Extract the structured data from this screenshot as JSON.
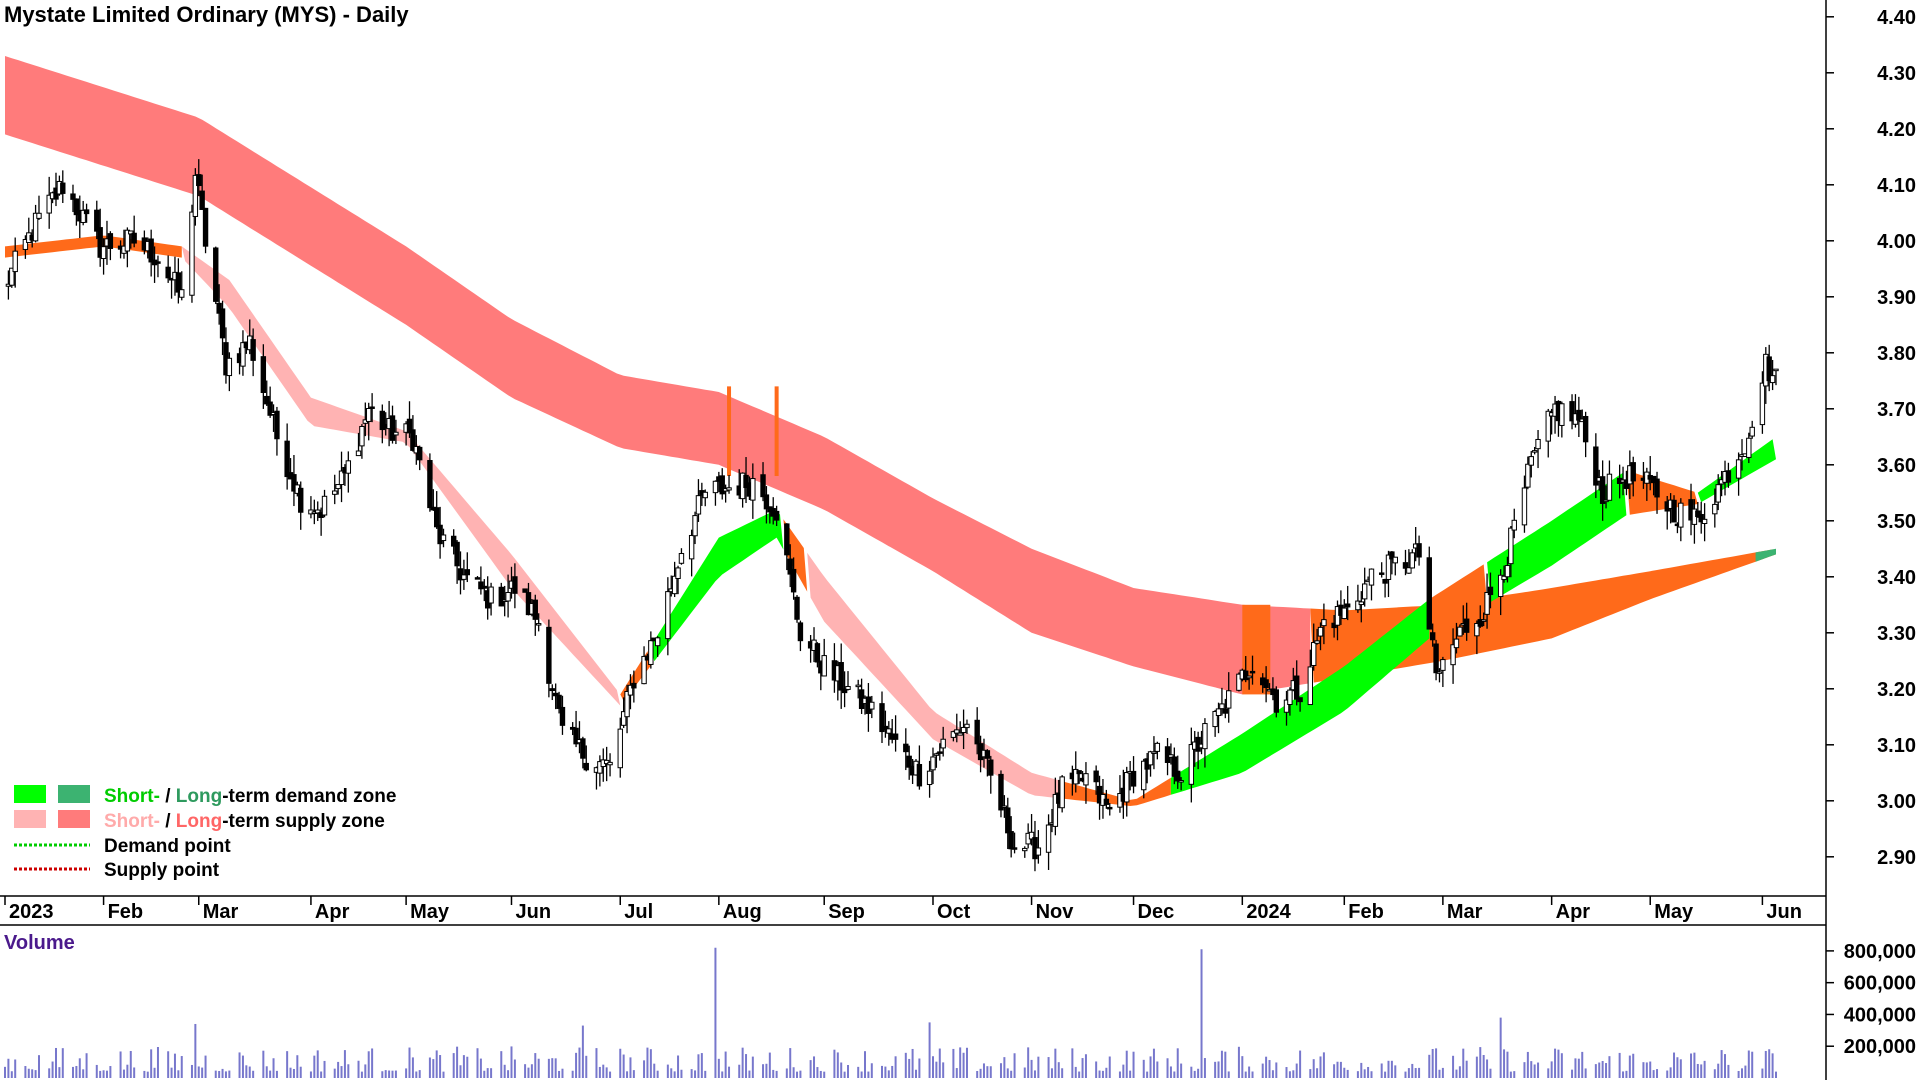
{
  "title": "Mystate Limited Ordinary (MYS) - Daily",
  "colors": {
    "short_demand": "#00ff00",
    "long_demand": "#3cb371",
    "short_supply": "#ffb3b3",
    "long_supply": "#ff7b7b",
    "overlap": "#ff6a1a",
    "volume": "#7777cc",
    "candle": "#000000",
    "volume_label": "#4b1a8c"
  },
  "legend": {
    "demand_short": "Short-",
    "demand_sep": " / ",
    "demand_long": "Long",
    "demand_rest": "-term demand zone",
    "supply_short": "Short-",
    "supply_sep": " / ",
    "supply_long": "Long",
    "supply_rest": "-term supply zone",
    "demand_point": "Demand point",
    "supply_point": "Supply point"
  },
  "chart_data": [
    {
      "type": "candlestick",
      "title": "Mystate Limited Ordinary (MYS) - Daily",
      "y_axis": {
        "position": "right",
        "range": [
          2.83,
          4.43
        ],
        "ticks": [
          "4.40",
          "4.30",
          "4.20",
          "4.10",
          "4.00",
          "3.90",
          "3.80",
          "3.70",
          "3.60",
          "3.50",
          "3.40",
          "3.30",
          "3.20",
          "3.10",
          "3.00",
          "2.90"
        ]
      },
      "x_axis": {
        "tick_labels": [
          "2023",
          "Feb",
          "Mar",
          "Apr",
          "May",
          "Jun",
          "Jul",
          "Aug",
          "Sep",
          "Oct",
          "Nov",
          "Dec",
          "2024",
          "Feb",
          "Mar",
          "Apr",
          "May",
          "Jun"
        ],
        "tick_dates": [
          "2023-01-03",
          "2023-02-01",
          "2023-03-01",
          "2023-04-03",
          "2023-05-01",
          "2023-06-01",
          "2023-07-03",
          "2023-08-01",
          "2023-09-01",
          "2023-10-03",
          "2023-11-01",
          "2023-12-01",
          "2024-01-02",
          "2024-02-01",
          "2024-03-01",
          "2024-04-02",
          "2024-05-01",
          "2024-06-03"
        ]
      },
      "price_path": [
        {
          "date": "2023-01-03",
          "close": 3.92
        },
        {
          "date": "2023-01-12",
          "close": 4.03
        },
        {
          "date": "2023-01-20",
          "close": 4.1
        },
        {
          "date": "2023-01-31",
          "close": 3.99
        },
        {
          "date": "2023-02-10",
          "close": 4.0
        },
        {
          "date": "2023-02-17",
          "close": 3.97
        },
        {
          "date": "2023-02-24",
          "close": 3.9
        },
        {
          "date": "2023-02-28",
          "close": 4.12
        },
        {
          "date": "2023-03-03",
          "close": 4.0
        },
        {
          "date": "2023-03-09",
          "close": 3.78
        },
        {
          "date": "2023-03-16",
          "close": 3.82
        },
        {
          "date": "2023-03-24",
          "close": 3.65
        },
        {
          "date": "2023-03-31",
          "close": 3.54
        },
        {
          "date": "2023-04-06",
          "close": 3.52
        },
        {
          "date": "2023-04-13",
          "close": 3.58
        },
        {
          "date": "2023-04-20",
          "close": 3.7
        },
        {
          "date": "2023-04-26",
          "close": 3.66
        },
        {
          "date": "2023-05-03",
          "close": 3.65
        },
        {
          "date": "2023-05-10",
          "close": 3.48
        },
        {
          "date": "2023-05-18",
          "close": 3.4
        },
        {
          "date": "2023-05-26",
          "close": 3.36
        },
        {
          "date": "2023-06-02",
          "close": 3.38
        },
        {
          "date": "2023-06-09",
          "close": 3.32
        },
        {
          "date": "2023-06-16",
          "close": 3.12
        },
        {
          "date": "2023-06-23",
          "close": 3.08
        },
        {
          "date": "2023-06-30",
          "close": 3.06
        },
        {
          "date": "2023-07-07",
          "close": 3.22
        },
        {
          "date": "2023-07-14",
          "close": 3.3
        },
        {
          "date": "2023-07-21",
          "close": 3.45
        },
        {
          "date": "2023-07-28",
          "close": 3.55
        },
        {
          "date": "2023-08-04",
          "close": 3.56
        },
        {
          "date": "2023-08-11",
          "close": 3.57
        },
        {
          "date": "2023-08-18",
          "close": 3.52
        },
        {
          "date": "2023-08-25",
          "close": 3.3
        },
        {
          "date": "2023-09-01",
          "close": 3.24
        },
        {
          "date": "2023-09-08",
          "close": 3.2
        },
        {
          "date": "2023-09-15",
          "close": 3.16
        },
        {
          "date": "2023-09-22",
          "close": 3.1
        },
        {
          "date": "2023-09-29",
          "close": 3.05
        },
        {
          "date": "2023-10-06",
          "close": 3.1
        },
        {
          "date": "2023-10-13",
          "close": 3.14
        },
        {
          "date": "2023-10-20",
          "close": 3.04
        },
        {
          "date": "2023-10-27",
          "close": 2.92
        },
        {
          "date": "2023-11-03",
          "close": 2.92
        },
        {
          "date": "2023-11-10",
          "close": 3.02
        },
        {
          "date": "2023-11-17",
          "close": 3.04
        },
        {
          "date": "2023-11-24",
          "close": 2.98
        },
        {
          "date": "2023-12-01",
          "close": 3.05
        },
        {
          "date": "2023-12-08",
          "close": 3.08
        },
        {
          "date": "2023-12-15",
          "close": 3.05
        },
        {
          "date": "2023-12-22",
          "close": 3.12
        },
        {
          "date": "2023-12-29",
          "close": 3.18
        },
        {
          "date": "2024-01-05",
          "close": 3.25
        },
        {
          "date": "2024-01-12",
          "close": 3.18
        },
        {
          "date": "2024-01-19",
          "close": 3.2
        },
        {
          "date": "2024-01-26",
          "close": 3.32
        },
        {
          "date": "2024-02-02",
          "close": 3.34
        },
        {
          "date": "2024-02-09",
          "close": 3.4
        },
        {
          "date": "2024-02-16",
          "close": 3.42
        },
        {
          "date": "2024-02-23",
          "close": 3.44
        },
        {
          "date": "2024-02-28",
          "close": 3.22
        },
        {
          "date": "2024-03-06",
          "close": 3.3
        },
        {
          "date": "2024-03-13",
          "close": 3.34
        },
        {
          "date": "2024-03-20",
          "close": 3.44
        },
        {
          "date": "2024-03-27",
          "close": 3.6
        },
        {
          "date": "2024-04-03",
          "close": 3.7
        },
        {
          "date": "2024-04-10",
          "close": 3.68
        },
        {
          "date": "2024-04-17",
          "close": 3.55
        },
        {
          "date": "2024-04-24",
          "close": 3.58
        },
        {
          "date": "2024-05-01",
          "close": 3.56
        },
        {
          "date": "2024-05-08",
          "close": 3.52
        },
        {
          "date": "2024-05-15",
          "close": 3.5
        },
        {
          "date": "2024-05-22",
          "close": 3.57
        },
        {
          "date": "2024-05-29",
          "close": 3.64
        },
        {
          "date": "2024-06-04",
          "close": 3.78
        },
        {
          "date": "2024-06-07",
          "close": 3.75
        }
      ],
      "zones": {
        "long_term_band": [
          {
            "date": "2023-01-03",
            "upper": 4.33,
            "lower": 4.19
          },
          {
            "date": "2023-03-01",
            "upper": 4.22,
            "lower": 4.08
          },
          {
            "date": "2023-05-01",
            "upper": 3.99,
            "lower": 3.85
          },
          {
            "date": "2023-06-01",
            "upper": 3.86,
            "lower": 3.72
          },
          {
            "date": "2023-07-03",
            "upper": 3.76,
            "lower": 3.63
          },
          {
            "date": "2023-08-01",
            "upper": 3.73,
            "lower": 3.6
          },
          {
            "date": "2023-09-01",
            "upper": 3.65,
            "lower": 3.52
          },
          {
            "date": "2023-10-03",
            "upper": 3.54,
            "lower": 3.41
          },
          {
            "date": "2023-11-01",
            "upper": 3.45,
            "lower": 3.3
          },
          {
            "date": "2023-12-01",
            "upper": 3.38,
            "lower": 3.24
          },
          {
            "date": "2024-01-02",
            "upper": 3.35,
            "lower": 3.19
          },
          {
            "date": "2024-02-01",
            "upper": 3.34,
            "lower": 3.22
          },
          {
            "date": "2024-03-01",
            "upper": 3.35,
            "lower": 3.25
          },
          {
            "date": "2024-04-02",
            "upper": 3.38,
            "lower": 3.29
          },
          {
            "date": "2024-05-01",
            "upper": 3.41,
            "lower": 3.36
          },
          {
            "date": "2024-06-07",
            "upper": 3.45,
            "lower": 3.44
          }
        ],
        "short_term_band": [
          {
            "date": "2023-01-03",
            "upper": 3.99,
            "lower": 3.97
          },
          {
            "date": "2023-02-01",
            "upper": 4.01,
            "lower": 3.99
          },
          {
            "date": "2023-02-24",
            "upper": 3.99,
            "lower": 3.97
          },
          {
            "date": "2023-03-10",
            "upper": 3.93,
            "lower": 3.88
          },
          {
            "date": "2023-04-03",
            "upper": 3.72,
            "lower": 3.67
          },
          {
            "date": "2023-05-01",
            "upper": 3.66,
            "lower": 3.64
          },
          {
            "date": "2023-06-01",
            "upper": 3.44,
            "lower": 3.38
          },
          {
            "date": "2023-07-03",
            "upper": 3.19,
            "lower": 3.17
          },
          {
            "date": "2023-08-01",
            "upper": 3.47,
            "lower": 3.4
          },
          {
            "date": "2023-08-18",
            "upper": 3.52,
            "lower": 3.47
          },
          {
            "date": "2023-09-01",
            "upper": 3.4,
            "lower": 3.32
          },
          {
            "date": "2023-10-03",
            "upper": 3.16,
            "lower": 3.11
          },
          {
            "date": "2023-11-01",
            "upper": 3.05,
            "lower": 3.01
          },
          {
            "date": "2023-12-01",
            "upper": 3.0,
            "lower": 2.99
          },
          {
            "date": "2024-01-02",
            "upper": 3.12,
            "lower": 3.05
          },
          {
            "date": "2024-02-01",
            "upper": 3.24,
            "lower": 3.16
          },
          {
            "date": "2024-02-26",
            "upper": 3.36,
            "lower": 3.29
          },
          {
            "date": "2024-04-02",
            "upper": 3.5,
            "lower": 3.42
          },
          {
            "date": "2024-04-24",
            "upper": 3.59,
            "lower": 3.51
          },
          {
            "date": "2024-05-15",
            "upper": 3.55,
            "lower": 3.53
          },
          {
            "date": "2024-06-07",
            "upper": 3.65,
            "lower": 3.61
          }
        ]
      }
    },
    {
      "type": "bar",
      "title": "Volume",
      "y_axis": {
        "position": "right",
        "range": [
          0,
          900000
        ],
        "ticks": [
          "800,000",
          "600,000",
          "400,000",
          "200,000"
        ]
      },
      "notable": [
        {
          "date": "2023-07-31",
          "value": 820000
        },
        {
          "date": "2023-12-21",
          "value": 810000
        },
        {
          "date": "2023-02-28",
          "value": 340000
        },
        {
          "date": "2023-06-22",
          "value": 330000
        },
        {
          "date": "2023-10-02",
          "value": 350000
        },
        {
          "date": "2024-03-18",
          "value": 380000
        }
      ],
      "typical_range": [
        40000,
        200000
      ]
    }
  ]
}
